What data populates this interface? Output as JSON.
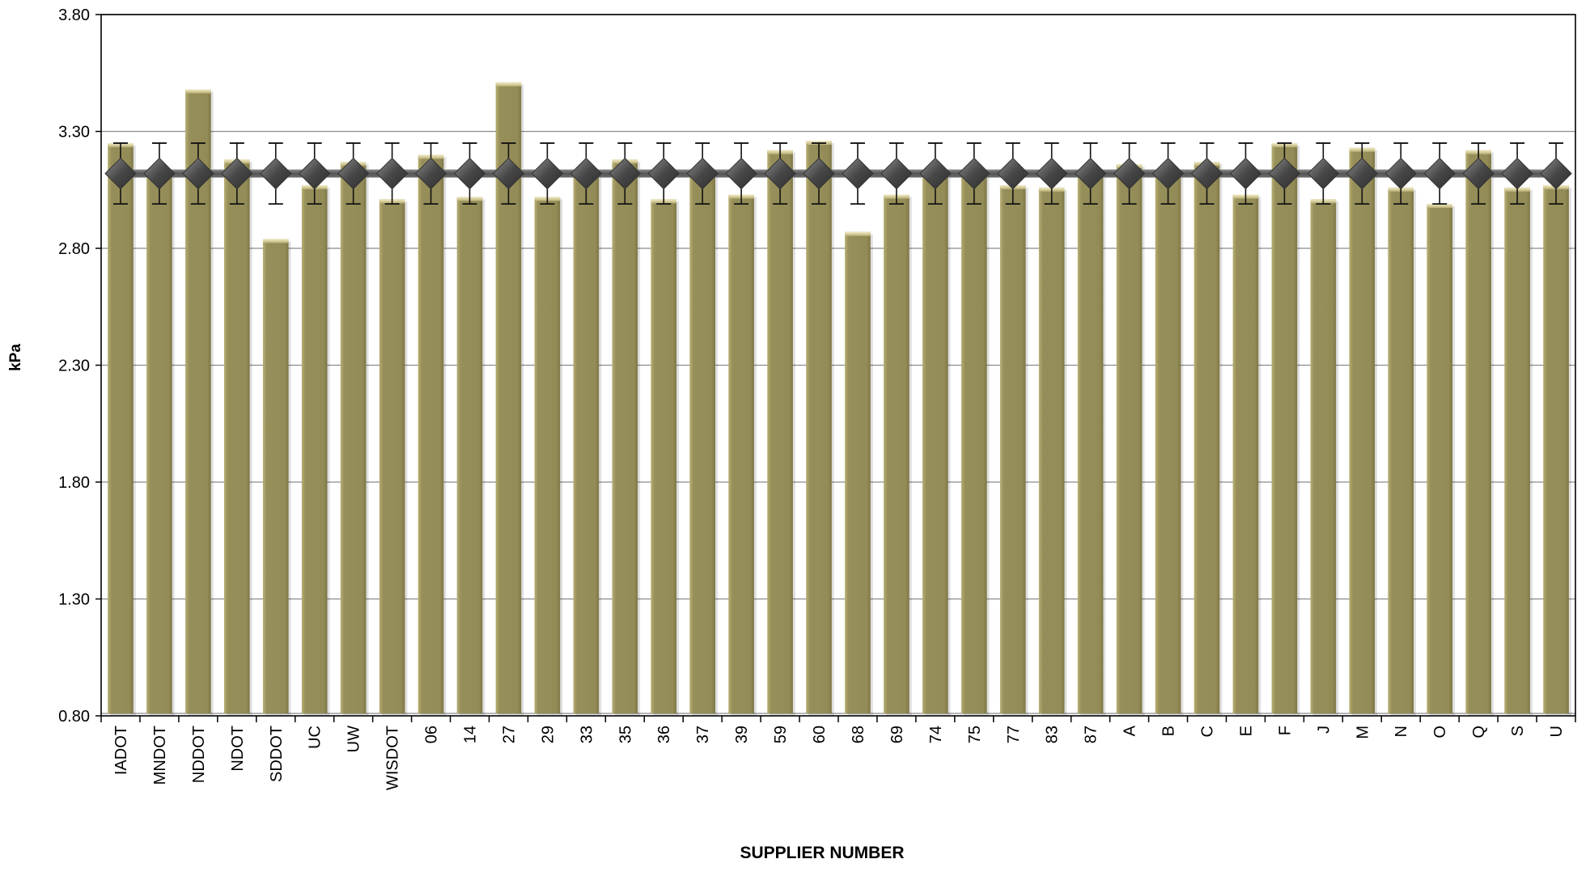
{
  "chart_data": {
    "type": "bar",
    "title": "",
    "xlabel": "SUPPLIER NUMBER",
    "ylabel": "kPa",
    "ylim": [
      0.8,
      3.8
    ],
    "yticks": [
      "0.80",
      "1.30",
      "1.80",
      "2.30",
      "2.80",
      "3.30",
      "3.80"
    ],
    "grid": true,
    "legend": "none",
    "categories": [
      "IADOT",
      "MNDOT",
      "NDDOT",
      "NDOT",
      "SDDOT",
      "UC",
      "UW",
      "WISDOT",
      "06",
      "14",
      "27",
      "29",
      "33",
      "35",
      "36",
      "37",
      "39",
      "59",
      "60",
      "68",
      "69",
      "74",
      "75",
      "77",
      "83",
      "87",
      "A",
      "B",
      "C",
      "E",
      "F",
      "J",
      "M",
      "N",
      "O",
      "Q",
      "S",
      "U"
    ],
    "series": [
      {
        "type": "bar",
        "values": [
          3.25,
          3.12,
          3.48,
          3.18,
          2.84,
          3.07,
          3.17,
          3.01,
          3.2,
          3.02,
          3.51,
          3.02,
          3.12,
          3.18,
          3.01,
          3.14,
          3.03,
          3.22,
          3.26,
          2.87,
          3.03,
          3.12,
          3.12,
          3.07,
          3.06,
          3.12,
          3.16,
          3.12,
          3.17,
          3.03,
          3.25,
          3.01,
          3.23,
          3.06,
          2.99,
          3.22,
          3.06,
          3.07
        ]
      },
      {
        "type": "line",
        "marker": "diamond",
        "value": 3.12,
        "error": 0.13
      }
    ],
    "colors": {
      "bar": "#978F5A",
      "bar_highlight": "#E6DDAA",
      "line": "#5A5A5A",
      "marker": "#4A4A4A",
      "grid": "#8C8C8C",
      "axis": "#000000"
    }
  }
}
